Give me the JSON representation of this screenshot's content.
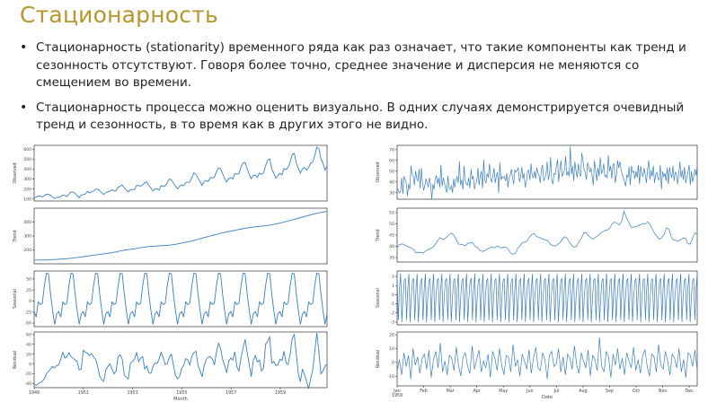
{
  "slide": {
    "title": "Стационарность",
    "bullets": [
      "Стационарность (stationarity) временного ряда как раз означает, что такие компоненты как тренд и сезонность отсутствуют. Говоря более точно, среднее значение и дисперсия не меняются со смещением во времени.",
      "Стационарность процесса можно оценить визуально. В одних случаях демонстрируется очевидный тренд и сезонность, в то время как в других этого не видно."
    ]
  },
  "colors": {
    "title": "#b8952a",
    "line": "#3a7fbf"
  },
  "chart_data": [
    {
      "type": "line",
      "title": "",
      "xlabel": "Month",
      "x_ticks": [
        "1949",
        "1951",
        "1953",
        "1955",
        "1957",
        "1959"
      ],
      "panels": [
        {
          "ylabel": "Observed",
          "y_ticks": [
            "100",
            "200",
            "300",
            "400",
            "500",
            "600"
          ],
          "ylim": [
            80,
            640
          ]
        },
        {
          "ylabel": "Trend",
          "y_ticks": [
            "200",
            "300",
            "400"
          ],
          "ylim": [
            100,
            500
          ]
        },
        {
          "ylabel": "Seasonal",
          "y_ticks": [
            "-50",
            "-25",
            "0",
            "25",
            "50"
          ],
          "ylim": [
            -58,
            68
          ]
        },
        {
          "ylabel": "Residual",
          "y_ticks": [
            "-40",
            "-20",
            "0",
            "20",
            "40",
            "60"
          ],
          "ylim": [
            -48,
            65
          ]
        }
      ],
      "series": [
        {
          "values": [
            112,
            118,
            132,
            129,
            121,
            135,
            148,
            148,
            136,
            119,
            104,
            118,
            115,
            126,
            141,
            135,
            125,
            149,
            170,
            170,
            158,
            133,
            114,
            140,
            145,
            150,
            178,
            163,
            172,
            178,
            199,
            199,
            184,
            162,
            146,
            166,
            171,
            180,
            193,
            181,
            183,
            218,
            230,
            242,
            209,
            191,
            172,
            194,
            196,
            196,
            236,
            235,
            229,
            243,
            264,
            272,
            237,
            211,
            180,
            201,
            204,
            188,
            235,
            227,
            234,
            264,
            302,
            293,
            259,
            229,
            203,
            229,
            242,
            233,
            267,
            269,
            270,
            315,
            364,
            347,
            312,
            274,
            237,
            278,
            284,
            277,
            317,
            313,
            318,
            374,
            413,
            405,
            355,
            306,
            271,
            306,
            315,
            301,
            356,
            348,
            355,
            422,
            465,
            467,
            404,
            347,
            305,
            336,
            340,
            318,
            362,
            348,
            363,
            435,
            491,
            505,
            404,
            359,
            310,
            337,
            360,
            342,
            406,
            396,
            420,
            472,
            548,
            559,
            463,
            407,
            362,
            405,
            417,
            391,
            419,
            461,
            472,
            535,
            622,
            606,
            508,
            461,
            390,
            432
          ]
        },
        {
          "values": [
            127,
            127,
            127,
            127,
            127,
            127,
            127,
            128,
            129,
            130,
            131,
            132,
            133,
            134,
            135,
            136,
            137,
            138,
            140,
            142,
            144,
            145,
            147,
            149,
            151,
            154,
            156,
            158,
            160,
            162,
            164,
            166,
            168,
            170,
            172,
            174,
            176,
            178,
            180,
            183,
            186,
            189,
            192,
            195,
            198,
            200,
            202,
            204,
            206,
            208,
            211,
            214,
            216,
            218,
            220,
            222,
            224,
            225,
            226,
            227,
            228,
            229,
            230,
            231,
            232,
            233,
            234,
            236,
            238,
            240,
            243,
            246,
            249,
            252,
            255,
            258,
            261,
            264,
            268,
            272,
            276,
            280,
            284,
            288,
            292,
            296,
            300,
            304,
            308,
            312,
            316,
            320,
            323,
            326,
            329,
            332,
            335,
            338,
            341,
            344,
            347,
            350,
            353,
            356,
            358,
            360,
            362,
            364,
            366,
            368,
            370,
            371,
            372,
            374,
            376,
            378,
            381,
            384,
            387,
            390,
            393,
            396,
            400,
            404,
            408,
            412,
            416,
            420,
            424,
            428,
            432,
            436,
            440,
            444,
            448,
            452,
            456,
            460,
            463,
            466,
            469,
            472,
            475,
            476
          ]
        },
        {
          "values": [
            -24,
            -36,
            -2,
            -8,
            -5,
            35,
            63,
            62,
            16,
            -21,
            -53,
            -29
          ]
        },
        {
          "values": [
            -42,
            -43,
            -40,
            -38,
            -35,
            -30,
            -20,
            -15,
            -10,
            -5,
            -8,
            -3,
            -2,
            10,
            24,
            12,
            15,
            23,
            15,
            12,
            8,
            5,
            -12,
            -10,
            28,
            24,
            22,
            17,
            21,
            14,
            10,
            -5,
            -24,
            -32,
            -35,
            -12,
            -5,
            0,
            -10,
            -20,
            -14,
            15,
            19,
            10,
            -22,
            -27,
            -30,
            2,
            5,
            10,
            23,
            5,
            12,
            15,
            -10,
            -4,
            -18,
            -19,
            -5,
            2,
            1,
            10,
            24,
            13,
            -1,
            1,
            14,
            20,
            -2,
            -23,
            -30,
            -25,
            -9,
            -3,
            11,
            9,
            -2,
            16,
            23,
            26,
            -3,
            -13,
            -26,
            -3,
            9,
            14,
            15,
            10,
            -2,
            24,
            42,
            32,
            10,
            -3,
            -18,
            5,
            12,
            8,
            25,
            -6,
            -14,
            12,
            33,
            50,
            23,
            -1,
            -26,
            7,
            17,
            4,
            8,
            -14,
            -8,
            40,
            46,
            55,
            2,
            5,
            -3,
            -2,
            10,
            7,
            26,
            2,
            -1,
            20,
            52,
            60,
            20,
            -20,
            -36,
            -10,
            -22,
            -35,
            -50,
            -30,
            -12,
            25,
            63,
            27,
            -20,
            -14,
            -5,
            0
          ]
        }
      ]
    },
    {
      "type": "line",
      "title": "",
      "xlabel": "Date",
      "x_ticks": [
        "Jan\n1959",
        "Feb",
        "Mar",
        "Apr",
        "May",
        "Jun",
        "Jul",
        "Aug",
        "Sep",
        "Oct",
        "Nov",
        "Dec"
      ],
      "panels": [
        {
          "ylabel": "Observed",
          "y_ticks": [
            "30",
            "40",
            "50",
            "60",
            "70"
          ],
          "ylim": [
            24,
            74
          ]
        },
        {
          "ylabel": "Trend",
          "y_ticks": [
            "35",
            "40",
            "45",
            "50",
            "55"
          ],
          "ylim": [
            33,
            57
          ]
        },
        {
          "ylabel": "Seasonal",
          "y_ticks": [
            "-3",
            "-2",
            "-1",
            "0",
            "1",
            "2"
          ],
          "ylim": [
            -3.3,
            2.6
          ]
        },
        {
          "ylabel": "Residual",
          "y_ticks": [
            "-10",
            "0",
            "10",
            "20"
          ],
          "ylim": [
            -17,
            22
          ]
        }
      ],
      "series": [
        {
          "values": [
            35,
            32,
            30,
            31,
            44,
            29,
            45,
            43,
            38,
            27,
            38,
            33,
            55,
            47,
            45,
            37,
            50,
            43,
            41,
            52,
            34,
            53,
            39,
            32,
            37,
            43,
            39,
            35,
            44,
            38,
            24,
            38,
            33,
            43,
            46,
            38,
            44,
            35,
            56,
            36,
            44,
            40,
            34,
            30,
            46,
            34,
            33,
            37,
            30,
            43,
            35,
            42,
            45,
            39,
            59,
            37,
            42,
            33,
            55,
            41,
            38,
            37,
            44,
            34,
            52,
            43,
            45,
            33,
            39,
            40,
            53,
            37,
            45,
            50,
            34,
            61,
            42,
            39,
            48,
            44,
            57,
            43,
            40,
            46,
            53,
            39,
            46,
            49,
            30,
            58,
            42,
            45,
            44,
            45,
            41,
            48,
            35,
            44,
            46,
            52,
            44,
            38,
            51,
            49,
            51,
            53,
            40,
            45,
            54,
            43,
            48,
            35,
            40,
            50,
            51,
            42,
            57,
            46,
            44,
            50,
            43,
            53,
            48,
            46,
            39,
            52,
            56,
            41,
            44,
            47,
            59,
            42,
            47,
            63,
            42,
            38,
            48,
            47,
            55,
            61,
            40,
            51,
            60,
            45,
            48,
            51,
            64,
            46,
            50,
            45,
            73,
            47,
            55,
            41,
            59,
            50,
            44,
            57,
            48,
            45,
            67,
            60,
            51,
            49,
            42,
            58,
            54,
            49,
            53,
            45,
            37,
            60,
            51,
            41,
            53,
            45,
            63,
            48,
            50,
            57,
            45,
            46,
            44,
            65,
            50,
            55,
            43,
            56,
            57,
            39,
            46,
            60,
            53,
            59,
            52,
            47,
            44,
            40,
            36,
            47,
            44,
            54,
            37,
            55,
            49,
            50,
            43,
            50,
            44,
            56,
            38,
            55,
            48,
            45,
            53,
            47,
            39,
            52,
            60,
            42,
            51,
            45,
            55,
            39,
            47,
            49,
            43,
            42,
            56,
            33,
            50,
            45,
            48,
            41,
            53,
            38,
            54,
            47,
            44,
            55,
            41,
            49,
            48,
            38,
            46,
            59,
            44,
            51,
            42,
            54,
            39,
            44,
            49,
            56,
            37,
            50,
            40,
            45,
            52,
            46,
            55
          ]
        },
        {
          "values": [
            39.5,
            40.7,
            41.1,
            40.8,
            40.1,
            39.7,
            39.2,
            38.6,
            37.1,
            37.2,
            37.4,
            36.9,
            37.9,
            38.5,
            38.9,
            39.4,
            40.6,
            42.2,
            43.9,
            43.2,
            43.2,
            44.2,
            45.2,
            45.9,
            44.9,
            43.0,
            41.0,
            40.9,
            40.6,
            40.3,
            41.5,
            41.4,
            41.7,
            39.9,
            39.6,
            38.1,
            37.7,
            38.0,
            38.8,
            39.2,
            39.8,
            39.3,
            40.0,
            39.9,
            39.2,
            39.6,
            39.6,
            38.8,
            37.0,
            36.5,
            36.8,
            39.0,
            40.2,
            41.7,
            41.9,
            42.3,
            44.2,
            45.3,
            45.7,
            44.3,
            44.1,
            43.5,
            43.1,
            42.8,
            42.3,
            40.7,
            40.4,
            40.1,
            40.9,
            41.7,
            43.3,
            44.3,
            43.5,
            41.7,
            40.3,
            39.6,
            40.1,
            42.1,
            43.6,
            46.0,
            46.1,
            44.7,
            43.8,
            43.2,
            44.0,
            44.8,
            45.7,
            46.6,
            47.0,
            47.3,
            48.2,
            49.9,
            50.8,
            50.4,
            49.5,
            51.0,
            55.6,
            52.9,
            50.8,
            48.5,
            48.5,
            48.8,
            49.2,
            49.6,
            50.2,
            49.8,
            50.9,
            49.7,
            47.7,
            45.8,
            44.4,
            43.2,
            43.8,
            45.3,
            48.3,
            47.6,
            44.2,
            42.8,
            42.6,
            42.4,
            42.9,
            43.6,
            43.6,
            41.3,
            40.9,
            43.6,
            46.0,
            45.4
          ]
        },
        {
          "values": [
            1.8,
            -2.8,
            0.6,
            2.3,
            -3.0,
            -0.4,
            1.5
          ]
        },
        {
          "values": [
            -6,
            2,
            -9,
            7,
            -3,
            5,
            -12,
            10,
            -2,
            4,
            -8,
            3,
            6,
            -5,
            9,
            -11,
            2,
            8,
            -4,
            14,
            -7,
            1,
            -9,
            5,
            3,
            -6,
            11,
            -2,
            -10,
            4,
            7,
            -3,
            -8,
            12,
            -5,
            2,
            9,
            -7,
            1,
            -4,
            6,
            -11,
            8,
            3,
            -6,
            10,
            -2,
            -9,
            5,
            4,
            -7,
            13,
            -3,
            2,
            -10,
            6,
            1,
            -5,
            9,
            -8,
            3,
            11,
            -4,
            -6,
            7,
            2,
            -12,
            5,
            8,
            -3,
            -1,
            10,
            -7,
            4,
            -9,
            6,
            3,
            -5,
            12,
            -2,
            -8,
            7,
            1,
            -4,
            9,
            -10,
            5,
            2,
            -6,
            18,
            -3,
            -7,
            8,
            4,
            -11,
            6,
            -2,
            10,
            -5,
            3,
            -9,
            7,
            1,
            -4,
            11,
            -6,
            2,
            -8,
            5,
            9,
            -3,
            -10,
            6,
            4,
            -7,
            13,
            -2,
            -5,
            8,
            1,
            -9,
            6,
            3,
            -4,
            10,
            -7,
            2,
            -11,
            7,
            5,
            -3,
            9,
            -6
          ]
        }
      ]
    }
  ]
}
